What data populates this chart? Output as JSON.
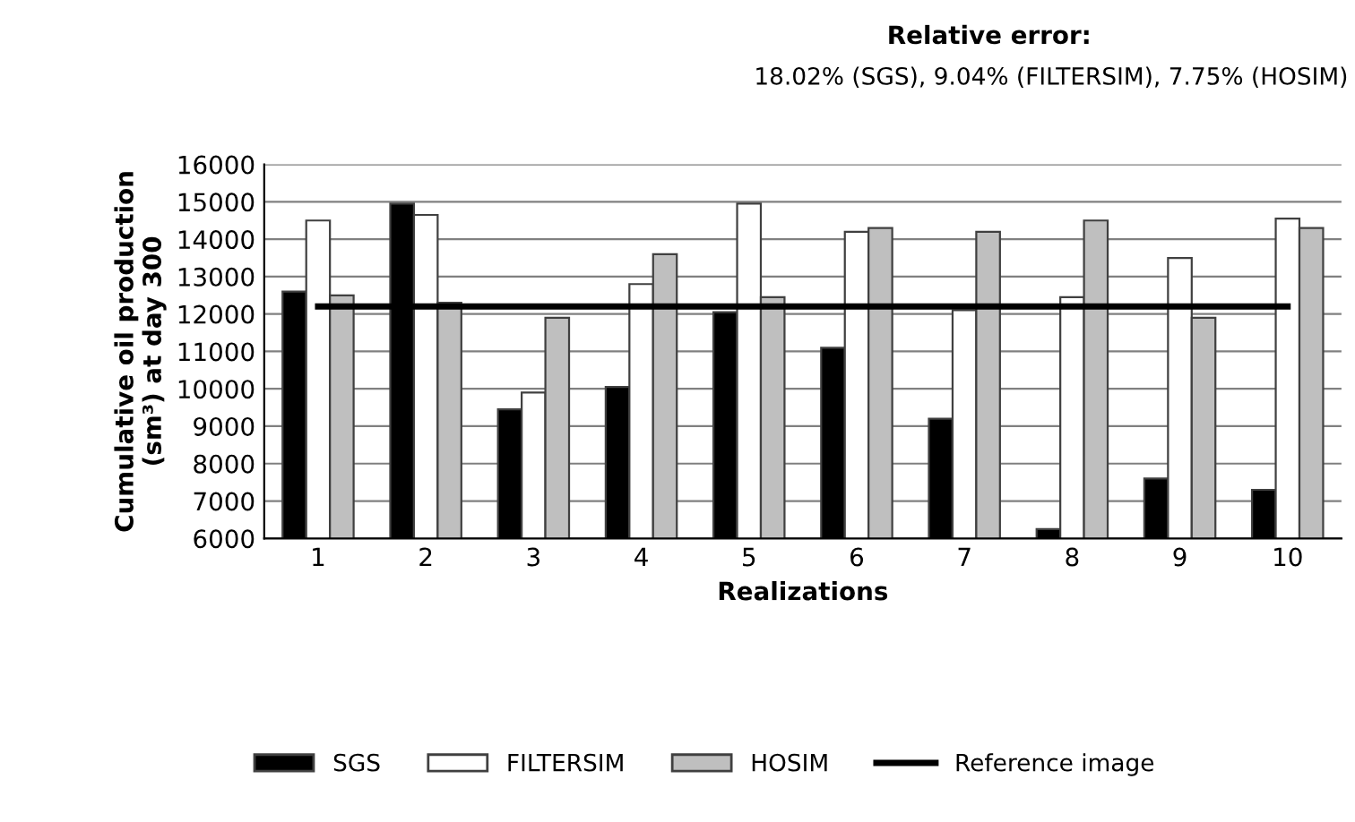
{
  "chart_data": {
    "type": "bar",
    "title": "Relative error:",
    "subtitle": "18.02% (SGS), 9.04% (FILTERSIM), 7.75% (HOSIM)",
    "xlabel": "Realizations",
    "ylabel": "Cumulative oil production\n(sm³) at day 300",
    "categories": [
      "1",
      "2",
      "3",
      "4",
      "5",
      "6",
      "7",
      "8",
      "9",
      "10"
    ],
    "series": [
      {
        "name": "SGS",
        "color": "#000000",
        "values": [
          12600,
          14950,
          9450,
          10050,
          12050,
          11100,
          9200,
          6250,
          7600,
          7300
        ]
      },
      {
        "name": "FILTERSIM",
        "color": "#ffffff",
        "values": [
          14500,
          14650,
          9900,
          12800,
          14950,
          14200,
          12100,
          12450,
          13500,
          14550
        ]
      },
      {
        "name": "HOSIM",
        "color": "#bfbfbf",
        "values": [
          12500,
          12300,
          11900,
          13600,
          12450,
          14300,
          14200,
          14500,
          11900,
          14300
        ]
      },
      {
        "name": "Reference image",
        "type": "line",
        "color": "#000000",
        "values": [
          12200,
          12200,
          12200,
          12200,
          12200,
          12200,
          12200,
          12200,
          12200,
          12200
        ]
      }
    ],
    "ylim": [
      6000,
      16000
    ],
    "yticks": [
      6000,
      7000,
      8000,
      9000,
      10000,
      11000,
      12000,
      13000,
      14000,
      15000,
      16000
    ],
    "grid": "y",
    "legend": "bottom"
  }
}
